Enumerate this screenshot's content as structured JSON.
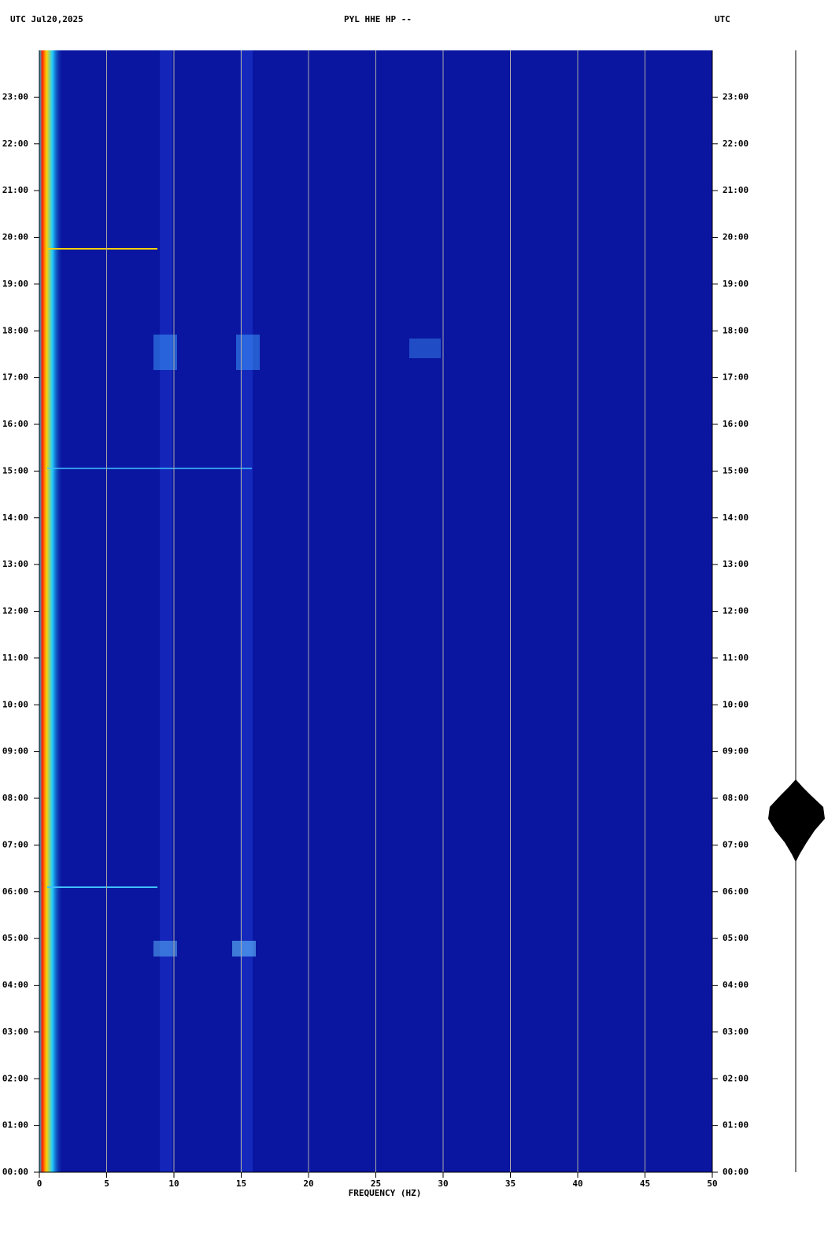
{
  "chart_data": {
    "type": "spectrogram",
    "title": "PYL HHE HP --",
    "date_label": "UTC  Jul20,2025",
    "right_label": "UTC",
    "x_label": "FREQUENCY (HZ)",
    "xlim": [
      0,
      50
    ],
    "xticks": [
      0,
      5,
      10,
      15,
      20,
      25,
      30,
      35,
      40,
      45,
      50
    ],
    "ylim": [
      0,
      24
    ],
    "yticks": [
      {
        "value": 0,
        "label": "00:00"
      },
      {
        "value": 1,
        "label": "01:00"
      },
      {
        "value": 2,
        "label": "02:00"
      },
      {
        "value": 3,
        "label": "03:00"
      },
      {
        "value": 4,
        "label": "04:00"
      },
      {
        "value": 5,
        "label": "05:00"
      },
      {
        "value": 6,
        "label": "06:00"
      },
      {
        "value": 7,
        "label": "07:00"
      },
      {
        "value": 8,
        "label": "08:00"
      },
      {
        "value": 9,
        "label": "09:00"
      },
      {
        "value": 10,
        "label": "10:00"
      },
      {
        "value": 11,
        "label": "11:00"
      },
      {
        "value": 12,
        "label": "12:00"
      },
      {
        "value": 13,
        "label": "13:00"
      },
      {
        "value": 14,
        "label": "14:00"
      },
      {
        "value": 15,
        "label": "15:00"
      },
      {
        "value": 16,
        "label": "16:00"
      },
      {
        "value": 17,
        "label": "17:00"
      },
      {
        "value": 18,
        "label": "18:00"
      },
      {
        "value": 19,
        "label": "19:00"
      },
      {
        "value": 20,
        "label": "20:00"
      },
      {
        "value": 21,
        "label": "21:00"
      },
      {
        "value": 22,
        "label": "22:00"
      },
      {
        "value": 23,
        "label": "23:00"
      }
    ],
    "grid": true,
    "grid_color": "#a8a8a8",
    "background_color": "#0a16a0"
  }
}
